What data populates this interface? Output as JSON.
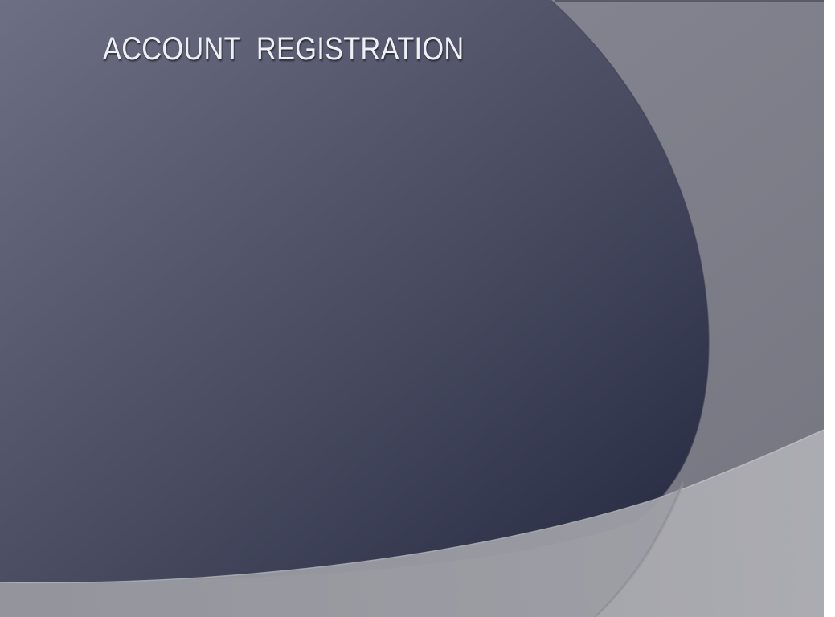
{
  "slide": {
    "title": "ACCOUNT  REGISTRATION"
  },
  "theme": {
    "background": "#7e7f8c",
    "dark_shape_light": "#6a6c82",
    "dark_shape_dark": "#262a40",
    "lower_band": "#a4a4ab",
    "title_color": "#eef0f6"
  }
}
